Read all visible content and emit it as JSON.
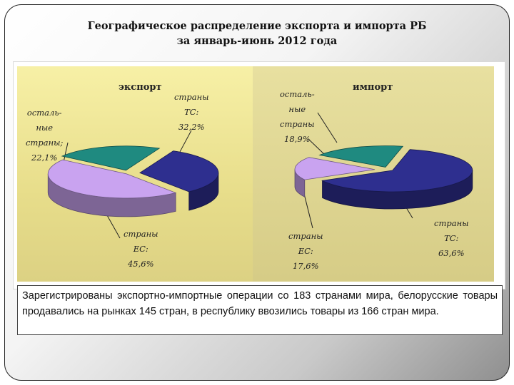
{
  "slide": {
    "title_line1": "Географическое распределение экспорта и импорта РБ",
    "title_line2": "за январь-июнь 2012 года",
    "note": "Зарегистрированы экспортно-импортные операции со 183 странами мира, белорусские товары продавались на рынках 145 стран, в республику ввозились товары из 166 стран мира."
  },
  "chart_data": [
    {
      "type": "pie",
      "title": "экспорт",
      "slices": [
        {
          "label_lines": [
            "страны",
            "ТС:",
            "32,2%"
          ],
          "value": 32.2,
          "color": "#2e2f8f"
        },
        {
          "label_lines": [
            "страны",
            "ЕС:",
            "45,6%"
          ],
          "value": 45.6,
          "color": "#c9a3f0"
        },
        {
          "label_lines": [
            "осталь-",
            "ные",
            "страны;",
            "22,1%"
          ],
          "value": 22.1,
          "color": "#1f8a80"
        }
      ]
    },
    {
      "type": "pie",
      "title": "импорт",
      "slices": [
        {
          "label_lines": [
            "страны",
            "ТС:",
            "63,6%"
          ],
          "value": 63.6,
          "color": "#2e2f8f"
        },
        {
          "label_lines": [
            "страны",
            "ЕС:",
            "17,6%"
          ],
          "value": 17.6,
          "color": "#c9a3f0"
        },
        {
          "label_lines": [
            "осталь-",
            "ные",
            "страны",
            "18,9%"
          ],
          "value": 18.9,
          "color": "#1f8a80"
        }
      ]
    }
  ]
}
